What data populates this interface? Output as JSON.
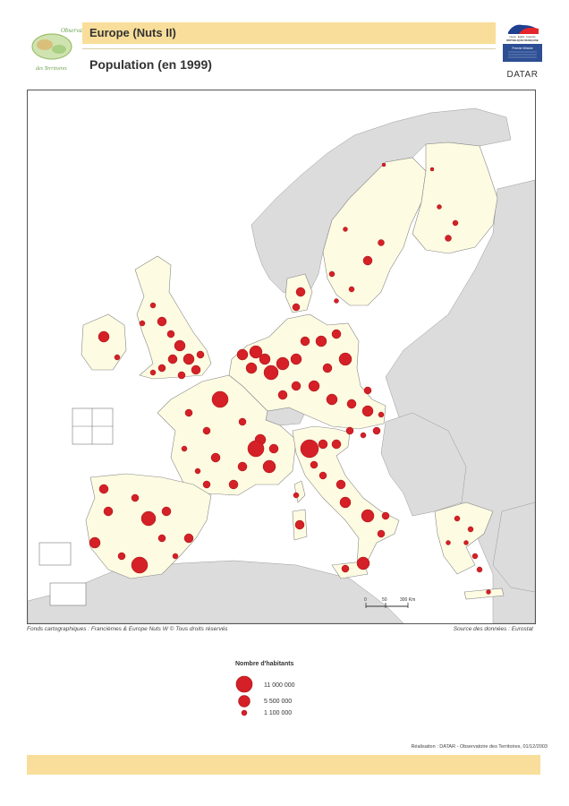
{
  "header": {
    "logo_text_top": "Observatoire",
    "logo_text_bottom": "des Territoires",
    "title": "Europe (Nuts II)",
    "subtitle": "Population (en 1999)"
  },
  "republic": {
    "motto": "Liberté · Égalité · Fraternité",
    "name": "RÉPUBLIQUE FRANÇAISE",
    "ministry": "Premier Ministre",
    "agency": "DATAR"
  },
  "map": {
    "colors": {
      "eu_fill": "#fdfbe2",
      "non_eu_fill": "#dcdcdc",
      "sea": "#ffffff",
      "bubble": "#d42026",
      "border": "#777777"
    },
    "scale": {
      "labels": [
        "0",
        "50",
        "300 Km"
      ]
    }
  },
  "credits": {
    "left": "Fonds cartographiques : Francièmes & Europe Nuts W © Tous droits réservés",
    "right": "Source des données : Eurostat"
  },
  "legend": {
    "title": "Nombre d'habitants",
    "items": [
      {
        "label": "11 000 000",
        "value": 11000000
      },
      {
        "label": "5 500 000",
        "value": 5500000
      },
      {
        "label": "1 100 000",
        "value": 1100000
      }
    ]
  },
  "footer": {
    "realisation": "Réalisation : DATAR - Observatoire des Territoires, 01/12/2003"
  }
}
